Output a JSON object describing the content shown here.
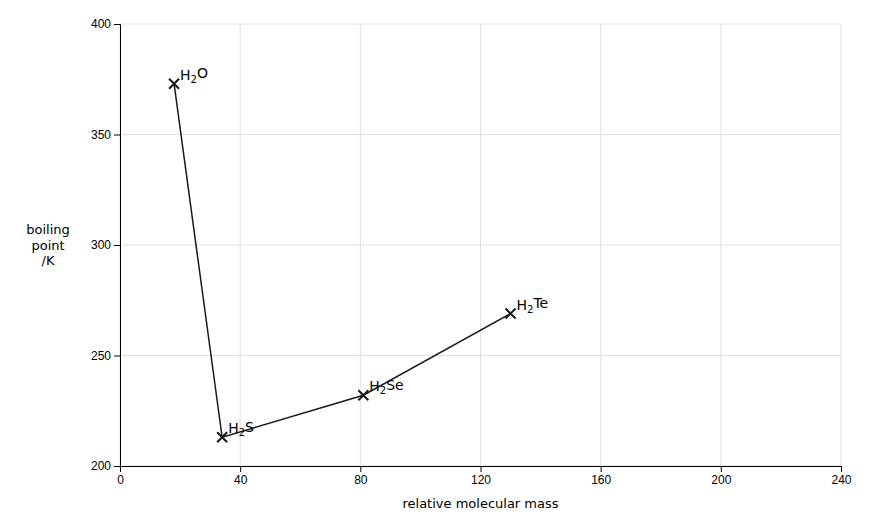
{
  "chart_data": {
    "type": "scatter",
    "xlabel": "relative molecular mass",
    "ylabel": [
      "boiling",
      "point",
      "/K"
    ],
    "x": [
      18,
      34,
      81,
      130
    ],
    "values": [
      373,
      213,
      232,
      269
    ],
    "labels": [
      {
        "main": "H",
        "sub": "2",
        "rest": "O"
      },
      {
        "main": "H",
        "sub": "2",
        "rest": "S"
      },
      {
        "main": "H",
        "sub": "2",
        "rest": "Se"
      },
      {
        "main": "H",
        "sub": "2",
        "rest": "Te"
      }
    ],
    "marker": "x",
    "color": "#1a1a1a",
    "series": [
      {
        "type": "line",
        "color": "#1a1a1a",
        "x": [
          18,
          34
        ],
        "values": [
          373,
          213
        ]
      },
      {
        "type": "line",
        "color": "#1a1a1a",
        "x": [
          34,
          81,
          130
        ],
        "values": [
          213,
          232,
          269
        ]
      }
    ],
    "xlim": [
      0,
      240
    ],
    "ylim": [
      200,
      400
    ],
    "xticks": [
      0,
      40,
      80,
      120,
      160,
      200,
      240
    ],
    "yticks": [
      200,
      250,
      300,
      350,
      400
    ],
    "grid": true
  }
}
